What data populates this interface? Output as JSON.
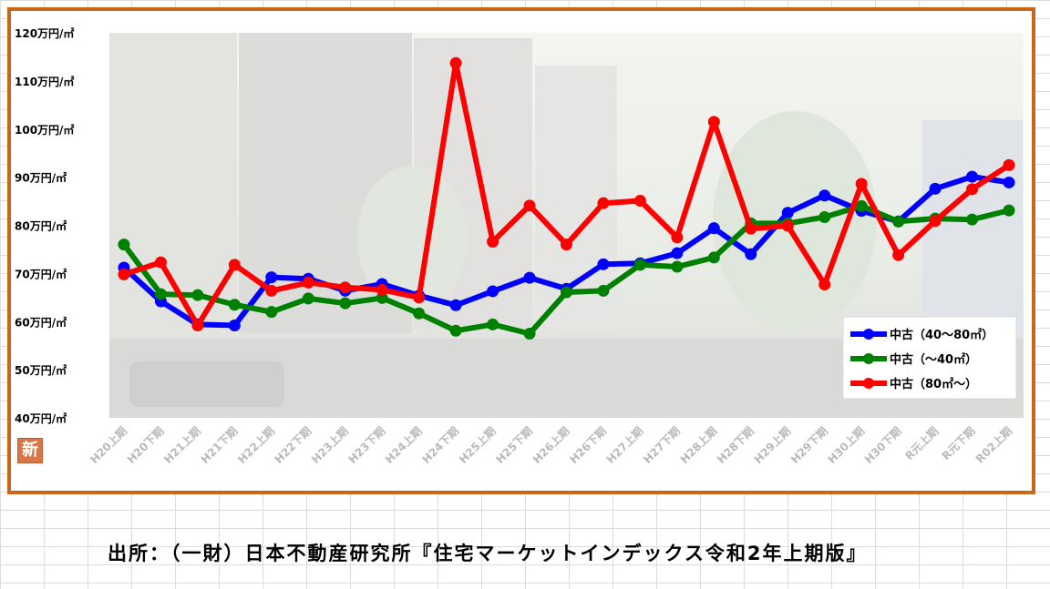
{
  "chart_data": {
    "type": "line",
    "title": "",
    "xlabel": "",
    "ylabel": "",
    "ylim": [
      40,
      120
    ],
    "y_ticks": [
      {
        "value": 120,
        "label": "120万円/㎡"
      },
      {
        "value": 110,
        "label": "110万円/㎡"
      },
      {
        "value": 100,
        "label": "100万円/㎡"
      },
      {
        "value": 90,
        "label": "90万円/㎡"
      },
      {
        "value": 80,
        "label": "80万円/㎡"
      },
      {
        "value": 70,
        "label": "70万円/㎡"
      },
      {
        "value": 60,
        "label": "60万円/㎡"
      },
      {
        "value": 50,
        "label": "50万円/㎡"
      },
      {
        "value": 40,
        "label": "40万円/㎡"
      }
    ],
    "categories": [
      "H20上期",
      "H20下期",
      "H21上期",
      "H21下期",
      "H22上期",
      "H22下期",
      "H23上期",
      "H23下期",
      "H24上期",
      "H24下期",
      "H25上期",
      "H25下期",
      "H26上期",
      "H26下期",
      "H27上期",
      "H27下期",
      "H28上期",
      "H28下期",
      "H29上期",
      "H29下期",
      "H30上期",
      "H30下期",
      "R元上期",
      "R元下期",
      "R02上期"
    ],
    "legend_position": "bottom-right",
    "grid": false,
    "series": [
      {
        "name": "中古（40～80㎡）",
        "color": "#0000ff",
        "values": [
          71.2,
          64.2,
          59.4,
          59.2,
          69.2,
          68.9,
          66.4,
          67.8,
          65.4,
          63.4,
          66.3,
          69.1,
          66.8,
          71.9,
          72.1,
          74.2,
          79.4,
          74.0,
          82.6,
          86.2,
          83.0,
          80.8,
          87.6,
          90.1,
          88.9
        ]
      },
      {
        "name": "中古（～40㎡）",
        "color": "#008000",
        "values": [
          76.0,
          65.7,
          65.5,
          63.5,
          62.0,
          64.8,
          63.8,
          64.9,
          61.7,
          58.1,
          59.4,
          57.5,
          66.1,
          66.4,
          71.8,
          71.4,
          73.3,
          80.4,
          80.4,
          81.7,
          84.0,
          80.8,
          81.4,
          81.2,
          83.1
        ]
      },
      {
        "name": "中古（80㎡～）",
        "color": "#ff0000",
        "values": [
          69.8,
          72.3,
          59.2,
          71.8,
          66.4,
          68.1,
          67.1,
          66.6,
          65.0,
          113.7,
          76.6,
          84.1,
          76.0,
          84.6,
          85.1,
          77.5,
          101.5,
          79.3,
          79.9,
          67.7,
          88.6,
          73.8,
          80.9,
          87.5,
          92.5
        ]
      }
    ]
  },
  "badge": {
    "label": "新"
  },
  "source": {
    "text": "出所：（一財）日本不動産研究所『住宅マーケットインデックス令和2年上期版』"
  }
}
